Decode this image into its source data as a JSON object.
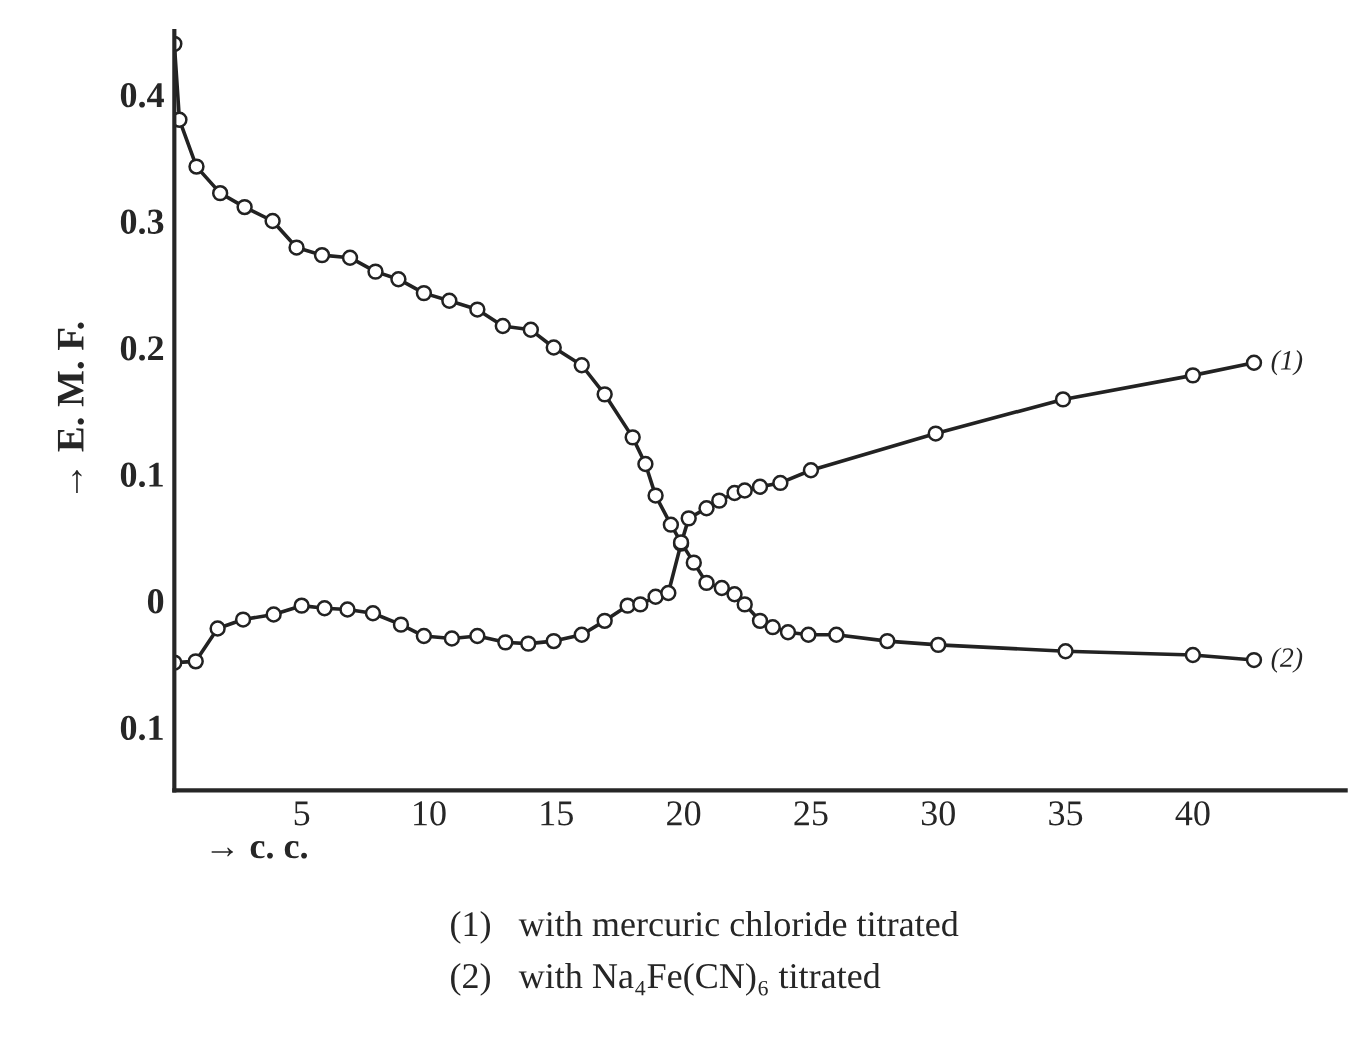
{
  "chart_data": {
    "type": "line",
    "xlabel": "→ c. c.",
    "ylabel": "→ E. M. F.",
    "xlim": [
      0,
      46
    ],
    "ylim": [
      -0.15,
      0.45
    ],
    "xticks": [
      5,
      10,
      15,
      20,
      25,
      30,
      35,
      40
    ],
    "yticks": [
      {
        "value": -0.1,
        "label": "0.1"
      },
      0,
      0.1,
      0.2,
      0.3,
      0.4
    ],
    "grid": false,
    "marker": "circle",
    "line_style": "solid",
    "series": [
      {
        "name": "(1)",
        "color": "#222222",
        "x": [
          0,
          0.84,
          1.7,
          2.7,
          3.9,
          5,
          5.9,
          6.8,
          7.8,
          8.9,
          9.8,
          10.9,
          11.9,
          13,
          13.9,
          14.9,
          16,
          16.9,
          17.8,
          18.3,
          18.9,
          19.4,
          19.9,
          20.2,
          20.9,
          21.4,
          22,
          22.4,
          23,
          23.8,
          25,
          29.9,
          34.9,
          40,
          42.4
        ],
        "values": [
          -0.049,
          -0.048,
          -0.022,
          -0.015,
          -0.011,
          -0.004,
          -0.006,
          -0.007,
          -0.01,
          -0.019,
          -0.028,
          -0.03,
          -0.028,
          -0.033,
          -0.034,
          -0.032,
          -0.027,
          -0.016,
          -0.004,
          -0.003,
          0.003,
          0.006,
          0.045,
          0.065,
          0.073,
          0.079,
          0.085,
          0.087,
          0.09,
          0.093,
          0.103,
          0.132,
          0.159,
          0.178,
          0.188
        ]
      },
      {
        "name": "(2)",
        "color": "#222222",
        "x": [
          0,
          0.2,
          0.87,
          1.8,
          2.76,
          3.86,
          4.8,
          5.8,
          6.9,
          7.9,
          8.8,
          9.8,
          10.8,
          11.9,
          12.9,
          14,
          14.9,
          16,
          16.9,
          18,
          18.5,
          18.9,
          19.5,
          19.9,
          20.4,
          20.9,
          21.5,
          22,
          22.4,
          23,
          23.5,
          24.1,
          24.9,
          26,
          28,
          30,
          35,
          40,
          42.4
        ],
        "values": [
          0.44,
          0.38,
          0.343,
          0.322,
          0.311,
          0.3,
          0.279,
          0.273,
          0.271,
          0.26,
          0.254,
          0.243,
          0.237,
          0.23,
          0.217,
          0.214,
          0.2,
          0.186,
          0.163,
          0.129,
          0.108,
          0.083,
          0.06,
          0.046,
          0.03,
          0.014,
          0.01,
          0.005,
          -0.003,
          -0.016,
          -0.021,
          -0.025,
          -0.027,
          -0.027,
          -0.032,
          -0.035,
          -0.04,
          -0.043,
          -0.047
        ]
      }
    ],
    "annotations": [
      "(1)   with mercuric chloride titrated",
      "(2)   with Na₄Fe(CN)₆ titrated"
    ]
  }
}
